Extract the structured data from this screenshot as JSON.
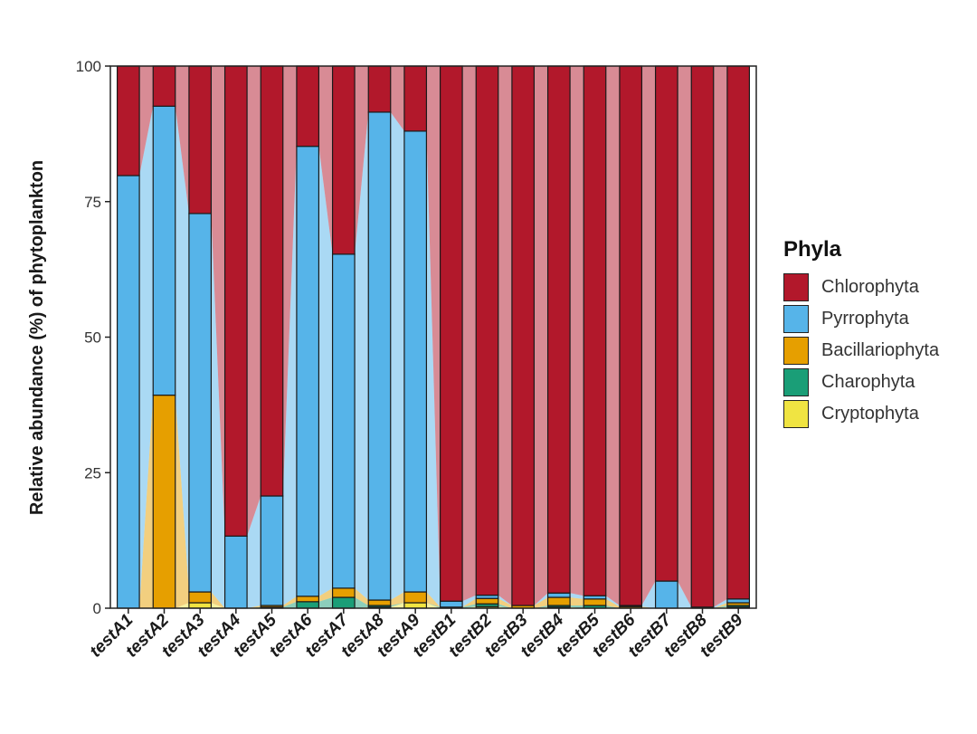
{
  "chart_data": {
    "type": "bar",
    "stacked": true,
    "title": "",
    "xlabel": "",
    "ylabel": "Relative abundance (%) of phytoplankton",
    "ylim": [
      0,
      100
    ],
    "yticks": [
      "0",
      "25",
      "50",
      "75",
      "100"
    ],
    "legend_title": "Phyla",
    "legend_position": "right",
    "categories": [
      "testA1",
      "testA2",
      "testA3",
      "testA4",
      "testA5",
      "testA6",
      "testA7",
      "testA8",
      "testA9",
      "testB1",
      "testB2",
      "testB3",
      "testB4",
      "testB5",
      "testB6",
      "testB7",
      "testB8",
      "testB9"
    ],
    "series": [
      {
        "name": "Cryptophyta",
        "color": "#f0e442",
        "values": [
          0,
          0,
          1.0,
          0,
          0,
          0,
          0,
          0.2,
          1.0,
          0,
          0.3,
          0,
          0.2,
          0,
          0,
          0,
          0,
          0.2
        ]
      },
      {
        "name": "Charophyta",
        "color": "#1a9e77",
        "values": [
          0,
          0,
          0,
          0,
          0.2,
          1.2,
          2.0,
          0.3,
          0,
          0.2,
          0.5,
          0,
          0.3,
          0.5,
          0,
          0,
          0,
          0.3
        ]
      },
      {
        "name": "Bacillariophyta",
        "color": "#e69f00",
        "values": [
          0,
          39.3,
          2.0,
          0,
          0.3,
          1.0,
          1.7,
          1.0,
          2.0,
          0,
          1.0,
          0.5,
          1.5,
          1.2,
          0.3,
          0,
          0,
          0.5
        ]
      },
      {
        "name": "Pyrrophyta",
        "color": "#56b4e9",
        "values": [
          79.8,
          53.3,
          69.8,
          13.3,
          20.2,
          83.0,
          61.6,
          90.0,
          85.0,
          1.1,
          0.6,
          0,
          0.8,
          0.6,
          0.2,
          5.0,
          0.2,
          0.7
        ]
      },
      {
        "name": "Chlorophyta",
        "color": "#b2182b",
        "values": [
          20.2,
          7.4,
          27.2,
          86.7,
          79.3,
          14.8,
          34.7,
          8.5,
          12.0,
          98.7,
          97.6,
          99.5,
          97.2,
          97.7,
          99.5,
          95.0,
          99.8,
          98.3
        ]
      }
    ],
    "legend_order": [
      "Chlorophyta",
      "Pyrrophyta",
      "Bacillariophyta",
      "Charophyta",
      "Cryptophyta"
    ]
  }
}
